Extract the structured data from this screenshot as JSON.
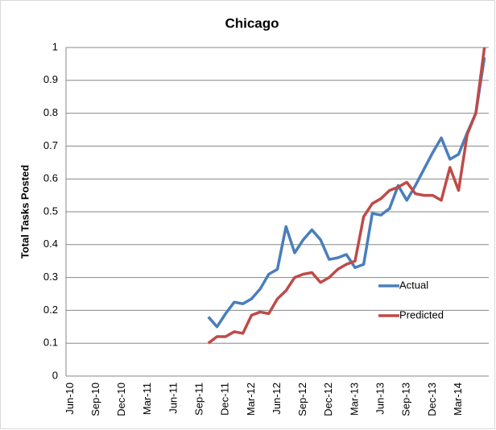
{
  "chart_data": {
    "type": "line",
    "title": "Chicago",
    "y_label": "Total Tasks Posted",
    "categories": [
      "Jun-10",
      null,
      null,
      "Sep-10",
      null,
      null,
      "Dec-10",
      null,
      null,
      "Mar-11",
      null,
      null,
      "Jun-11",
      null,
      null,
      "Sep-11",
      null,
      null,
      "Dec-11",
      null,
      null,
      "Mar-12",
      null,
      null,
      "Jun-12",
      null,
      null,
      "Sep-12",
      null,
      null,
      "Dec-12",
      null,
      null,
      "Mar-13",
      null,
      null,
      "Jun-13",
      null,
      null,
      "Sep-13",
      null,
      null,
      "Dec-13",
      null,
      null,
      "Mar-14",
      null,
      null,
      null
    ],
    "series": [
      {
        "name": "Actual",
        "color": "#4a7ebb",
        "values": [
          null,
          null,
          null,
          null,
          null,
          null,
          null,
          null,
          null,
          null,
          null,
          null,
          null,
          null,
          null,
          null,
          0.18,
          0.15,
          0.19,
          0.225,
          0.22,
          0.235,
          0.265,
          0.31,
          0.325,
          0.455,
          0.375,
          0.415,
          0.445,
          0.415,
          0.355,
          0.36,
          0.37,
          0.33,
          0.34,
          0.495,
          0.49,
          0.51,
          0.58,
          0.535,
          0.58,
          0.63,
          0.68,
          0.725,
          0.66,
          0.675,
          0.74,
          0.8,
          0.97
        ]
      },
      {
        "name": "Predicted",
        "color": "#be4b48",
        "values": [
          null,
          null,
          null,
          null,
          null,
          null,
          null,
          null,
          null,
          null,
          null,
          null,
          null,
          null,
          null,
          null,
          0.1,
          0.12,
          0.12,
          0.135,
          0.13,
          0.185,
          0.195,
          0.19,
          0.235,
          0.26,
          0.3,
          0.31,
          0.315,
          0.285,
          0.3,
          0.325,
          0.34,
          0.35,
          0.485,
          0.525,
          0.54,
          0.565,
          0.575,
          0.59,
          0.555,
          0.55,
          0.55,
          0.535,
          0.635,
          0.565,
          0.735,
          0.8,
          1.0
        ]
      }
    ],
    "ylim": [
      0,
      1
    ],
    "yticks": [
      0,
      0.1,
      0.2,
      0.3,
      0.4,
      0.5,
      0.6,
      0.7,
      0.8,
      0.9,
      1
    ],
    "grid": true,
    "legend": "right"
  }
}
